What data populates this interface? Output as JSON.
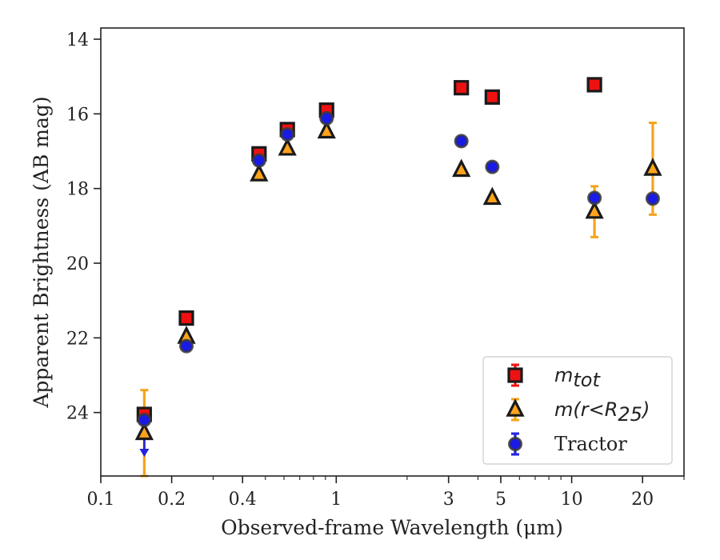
{
  "chart_data": {
    "type": "scatter",
    "xlabel": "Observed-frame Wavelength (μm)",
    "ylabel": "Apparent Brightness (AB mag)",
    "x_scale": "log",
    "xlim": [
      0.1,
      30
    ],
    "ylim": [
      25.7,
      13.7
    ],
    "y_inverted": true,
    "x_ticks": [
      {
        "value": 0.1,
        "label": "0.1"
      },
      {
        "value": 0.2,
        "label": "0.2"
      },
      {
        "value": 0.4,
        "label": "0.4"
      },
      {
        "value": 1,
        "label": "1"
      },
      {
        "value": 3,
        "label": "3"
      },
      {
        "value": 5,
        "label": "5"
      },
      {
        "value": 10,
        "label": "10"
      },
      {
        "value": 20,
        "label": "20"
      }
    ],
    "y_ticks": [
      {
        "value": 14,
        "label": "14"
      },
      {
        "value": 16,
        "label": "16"
      },
      {
        "value": 18,
        "label": "18"
      },
      {
        "value": 20,
        "label": "20"
      },
      {
        "value": 22,
        "label": "22"
      },
      {
        "value": 24,
        "label": "24"
      }
    ],
    "grid": false,
    "legend_position": "lower right",
    "series": [
      {
        "name": "m_tot",
        "legend_main": "m",
        "legend_sub": "tot",
        "marker": "square",
        "color": "#ee1111",
        "errorbar_color": "#ee1111",
        "points": [
          {
            "x": 0.153,
            "y": 24.05
          },
          {
            "x": 0.231,
            "y": 21.47
          },
          {
            "x": 0.47,
            "y": 17.07
          },
          {
            "x": 0.62,
            "y": 16.42
          },
          {
            "x": 0.91,
            "y": 15.9
          },
          {
            "x": 3.4,
            "y": 15.3
          },
          {
            "x": 4.6,
            "y": 15.55
          },
          {
            "x": 12.5,
            "y": 15.22
          }
        ]
      },
      {
        "name": "m(r<R25)",
        "legend_main": "m(r<R",
        "legend_sub": "25",
        "legend_close": ")",
        "marker": "triangle",
        "color": "#ffa41c",
        "errorbar_color": "#f5a31a",
        "points": [
          {
            "x": 0.153,
            "y": 24.55,
            "yerr": 1.15
          },
          {
            "x": 0.231,
            "y": 21.97
          },
          {
            "x": 0.47,
            "y": 17.62
          },
          {
            "x": 0.62,
            "y": 16.93
          },
          {
            "x": 0.91,
            "y": 16.47
          },
          {
            "x": 3.4,
            "y": 17.5
          },
          {
            "x": 4.6,
            "y": 18.25
          },
          {
            "x": 12.5,
            "y": 18.62,
            "yerr": 0.68
          },
          {
            "x": 22.1,
            "y": 17.47,
            "yerr": 1.23
          }
        ]
      },
      {
        "name": "Tractor",
        "legend_main": "Tractor",
        "marker": "circle",
        "color": "#1a1ae6",
        "errorbar_color": "#2222dd",
        "points": [
          {
            "x": 0.153,
            "y": 24.2,
            "upper_limit": true
          },
          {
            "x": 0.231,
            "y": 22.22
          },
          {
            "x": 0.47,
            "y": 17.25
          },
          {
            "x": 0.62,
            "y": 16.55
          },
          {
            "x": 0.91,
            "y": 16.12
          },
          {
            "x": 3.4,
            "y": 16.73
          },
          {
            "x": 4.6,
            "y": 17.42
          },
          {
            "x": 12.5,
            "y": 18.25
          },
          {
            "x": 22.1,
            "y": 18.27
          }
        ]
      }
    ]
  }
}
